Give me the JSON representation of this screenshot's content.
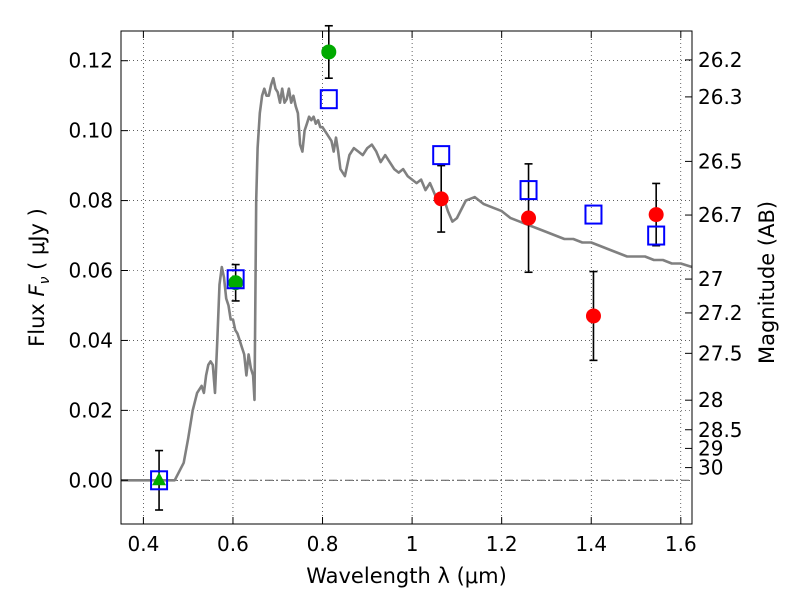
{
  "chart_data": {
    "type": "scatter",
    "xlabel": "Wavelength  λ (μm)",
    "ylabel_prefix": "Flux  ",
    "ylabel_var": "F",
    "ylabel_sub": "ν",
    "ylabel_suffix": "  ( μJy )",
    "y2label": "Magnitude (AB)",
    "xlim": [
      0.35,
      1.625
    ],
    "ylim": [
      -0.0125,
      0.1285
    ],
    "grid": true,
    "x_ticks": [
      {
        "value": 0.4,
        "label": "0.4"
      },
      {
        "value": 0.6,
        "label": "0.6"
      },
      {
        "value": 0.8,
        "label": "0.8"
      },
      {
        "value": 1.0,
        "label": "1"
      },
      {
        "value": 1.2,
        "label": "1.2"
      },
      {
        "value": 1.4,
        "label": "1.4"
      },
      {
        "value": 1.6,
        "label": "1.6"
      }
    ],
    "y_ticks": [
      {
        "value": 0.0,
        "label": "0.00"
      },
      {
        "value": 0.02,
        "label": "0.02"
      },
      {
        "value": 0.04,
        "label": "0.04"
      },
      {
        "value": 0.06,
        "label": "0.06"
      },
      {
        "value": 0.08,
        "label": "0.08"
      },
      {
        "value": 0.1,
        "label": "0.10"
      },
      {
        "value": 0.12,
        "label": "0.12"
      }
    ],
    "mag_ticks": [
      {
        "value": 26.2,
        "label": "26.2"
      },
      {
        "value": 26.3,
        "label": "26.3"
      },
      {
        "value": 26.5,
        "label": "26.5"
      },
      {
        "value": 26.7,
        "label": "26.7"
      },
      {
        "value": 27.0,
        "label": "27"
      },
      {
        "value": 27.2,
        "label": "27.2"
      },
      {
        "value": 27.5,
        "label": "27.5"
      },
      {
        "value": 28.0,
        "label": "28"
      },
      {
        "value": 28.5,
        "label": "28.5"
      },
      {
        "value": 29.0,
        "label": "29"
      },
      {
        "value": 30.0,
        "label": "30"
      }
    ],
    "reference_line": {
      "y": 0.0,
      "style": "dash-dot",
      "color": "#555555"
    },
    "model_sed": {
      "color": "#808080",
      "x": [
        0.35,
        0.47,
        0.49,
        0.5,
        0.51,
        0.52,
        0.53,
        0.535,
        0.54,
        0.545,
        0.55,
        0.555,
        0.56,
        0.565,
        0.57,
        0.575,
        0.58,
        0.585,
        0.59,
        0.595,
        0.6,
        0.605,
        0.61,
        0.615,
        0.62,
        0.625,
        0.63,
        0.635,
        0.64,
        0.645,
        0.648,
        0.652,
        0.655,
        0.66,
        0.665,
        0.67,
        0.675,
        0.68,
        0.685,
        0.69,
        0.695,
        0.7,
        0.705,
        0.71,
        0.715,
        0.72,
        0.725,
        0.73,
        0.735,
        0.74,
        0.745,
        0.75,
        0.755,
        0.76,
        0.765,
        0.77,
        0.775,
        0.78,
        0.785,
        0.79,
        0.795,
        0.8,
        0.81,
        0.82,
        0.825,
        0.83,
        0.835,
        0.84,
        0.85,
        0.86,
        0.87,
        0.88,
        0.89,
        0.9,
        0.91,
        0.92,
        0.93,
        0.94,
        0.95,
        0.96,
        0.97,
        0.98,
        0.99,
        1.0,
        1.01,
        1.02,
        1.03,
        1.04,
        1.05,
        1.06,
        1.07,
        1.08,
        1.09,
        1.1,
        1.12,
        1.14,
        1.16,
        1.18,
        1.2,
        1.22,
        1.24,
        1.26,
        1.28,
        1.3,
        1.32,
        1.34,
        1.36,
        1.38,
        1.4,
        1.42,
        1.44,
        1.46,
        1.48,
        1.5,
        1.52,
        1.54,
        1.56,
        1.58,
        1.6,
        1.625
      ],
      "y": [
        0.0,
        0.0,
        0.005,
        0.012,
        0.02,
        0.025,
        0.027,
        0.025,
        0.03,
        0.033,
        0.034,
        0.033,
        0.025,
        0.04,
        0.056,
        0.061,
        0.058,
        0.052,
        0.05,
        0.046,
        0.046,
        0.043,
        0.042,
        0.04,
        0.038,
        0.036,
        0.03,
        0.036,
        0.032,
        0.03,
        0.023,
        0.08,
        0.095,
        0.105,
        0.11,
        0.112,
        0.11,
        0.11,
        0.113,
        0.115,
        0.112,
        0.111,
        0.108,
        0.112,
        0.108,
        0.109,
        0.112,
        0.108,
        0.11,
        0.107,
        0.105,
        0.096,
        0.094,
        0.1,
        0.102,
        0.104,
        0.103,
        0.104,
        0.102,
        0.103,
        0.101,
        0.101,
        0.099,
        0.097,
        0.094,
        0.098,
        0.094,
        0.089,
        0.087,
        0.093,
        0.095,
        0.094,
        0.093,
        0.095,
        0.096,
        0.094,
        0.091,
        0.093,
        0.091,
        0.089,
        0.088,
        0.089,
        0.087,
        0.086,
        0.085,
        0.086,
        0.083,
        0.085,
        0.082,
        0.079,
        0.081,
        0.077,
        0.074,
        0.075,
        0.08,
        0.081,
        0.079,
        0.078,
        0.077,
        0.075,
        0.074,
        0.073,
        0.072,
        0.071,
        0.07,
        0.069,
        0.069,
        0.068,
        0.068,
        0.067,
        0.066,
        0.065,
        0.064,
        0.064,
        0.064,
        0.063,
        0.063,
        0.062,
        0.062,
        0.061
      ]
    },
    "series": [
      {
        "marker": "circle",
        "color": "#ff0000",
        "points": [
          {
            "x": 1.065,
            "y": 0.0805,
            "err": 0.0095
          },
          {
            "x": 1.26,
            "y": 0.075,
            "err": 0.0155
          },
          {
            "x": 1.405,
            "y": 0.047,
            "err": 0.0127
          },
          {
            "x": 1.545,
            "y": 0.076,
            "err": 0.0089
          }
        ]
      },
      {
        "marker": "circle",
        "color": "#00aa00",
        "points": [
          {
            "x": 0.606,
            "y": 0.0565,
            "err": 0.0052
          },
          {
            "x": 0.814,
            "y": 0.1225,
            "err": 0.0075
          }
        ]
      },
      {
        "marker": "triangle",
        "color": "#00aa00",
        "points": [
          {
            "x": 0.435,
            "y": 0.0,
            "err": 0.0085
          }
        ]
      },
      {
        "marker": "open-square",
        "color": "#0000ff",
        "points": [
          {
            "x": 0.435,
            "y": 0.0
          },
          {
            "x": 0.606,
            "y": 0.0575
          },
          {
            "x": 0.814,
            "y": 0.109
          },
          {
            "x": 1.065,
            "y": 0.093
          },
          {
            "x": 1.26,
            "y": 0.083
          },
          {
            "x": 1.405,
            "y": 0.076
          },
          {
            "x": 1.545,
            "y": 0.07
          }
        ]
      }
    ]
  }
}
